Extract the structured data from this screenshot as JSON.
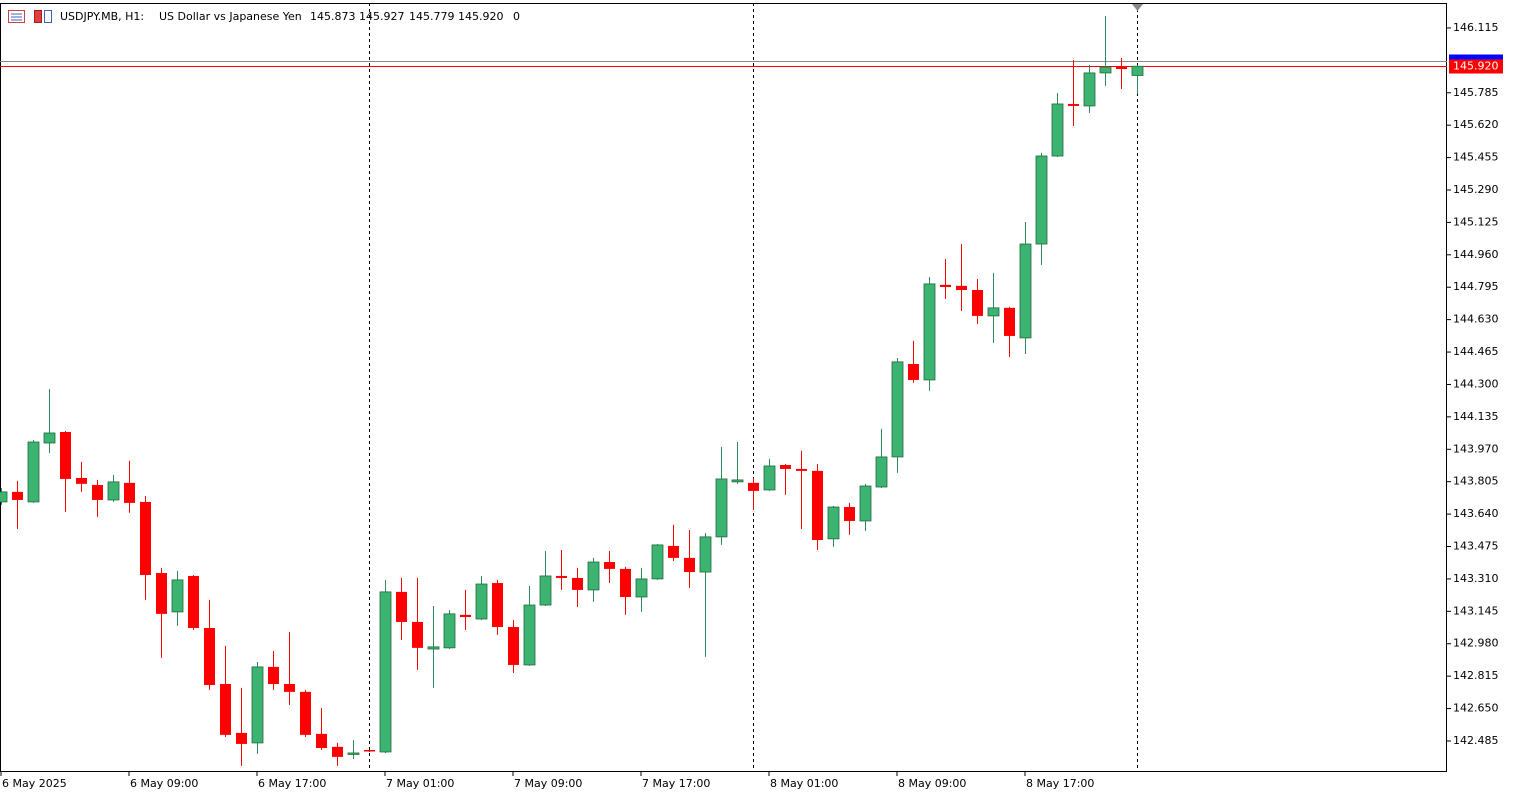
{
  "header": {
    "symbol": "USDJPY.MB, H1:",
    "description": "US Dollar vs Japanese Yen",
    "quote": [
      "145.873",
      "145.927",
      "145.779",
      "145.920"
    ],
    "spread": "0"
  },
  "chart_data": {
    "type": "candlestick",
    "categories": [
      "6 May 2025",
      null,
      null,
      null,
      null,
      null,
      null,
      null,
      "6 May 09:00",
      null,
      null,
      null,
      null,
      null,
      null,
      null,
      "6 May 17:00",
      null,
      null,
      null,
      null,
      null,
      null,
      null,
      "7 May 01:00",
      null,
      null,
      null,
      null,
      null,
      null,
      null,
      "7 May 09:00",
      null,
      null,
      null,
      null,
      null,
      null,
      null,
      "7 May 17:00",
      null,
      null,
      null,
      null,
      null,
      null,
      null,
      "8 May 01:00",
      null,
      null,
      null,
      null,
      null,
      null,
      null,
      "8 May 09:00",
      null,
      null,
      null,
      null,
      null,
      null,
      null,
      "8 May 17:00",
      null,
      null,
      null,
      null,
      null,
      null,
      null
    ],
    "open": [
      143.702,
      143.753,
      143.702,
      144.002,
      144.058,
      143.824,
      143.788,
      143.712,
      143.799,
      143.702,
      143.34,
      143.142,
      143.325,
      143.06,
      142.775,
      142.526,
      142.475,
      142.862,
      142.775,
      142.735,
      142.521,
      142.455,
      142.419,
      142.439,
      142.429,
      143.244,
      143.091,
      142.953,
      142.959,
      143.127,
      143.106,
      143.289,
      143.065,
      142.872,
      143.177,
      143.325,
      143.315,
      143.254,
      143.396,
      143.361,
      143.218,
      143.31,
      143.478,
      143.417,
      143.345,
      143.524,
      143.804,
      143.799,
      143.763,
      143.89,
      143.87,
      143.86,
      143.514,
      143.676,
      143.605,
      143.778,
      143.931,
      144.404,
      144.323,
      144.807,
      144.802,
      144.781,
      144.649,
      144.69,
      144.537,
      145.015,
      145.463,
      145.728,
      145.718,
      145.886,
      145.916,
      145.873
    ],
    "high": [
      143.773,
      143.809,
      144.018,
      144.277,
      144.063,
      143.906,
      143.814,
      143.839,
      143.911,
      143.732,
      143.366,
      143.35,
      143.33,
      143.203,
      142.969,
      142.755,
      142.887,
      142.943,
      143.04,
      142.745,
      142.653,
      142.475,
      142.49,
      142.439,
      143.305,
      143.315,
      143.315,
      143.172,
      143.152,
      143.254,
      143.325,
      143.305,
      143.101,
      143.274,
      143.452,
      143.457,
      143.366,
      143.417,
      143.452,
      143.371,
      143.366,
      143.488,
      143.585,
      143.559,
      143.544,
      143.982,
      144.007,
      143.824,
      143.921,
      143.895,
      143.962,
      143.895,
      143.682,
      143.697,
      143.794,
      144.074,
      144.435,
      144.522,
      144.847,
      144.939,
      145.015,
      144.837,
      144.868,
      144.695,
      145.127,
      145.479,
      145.784,
      145.952,
      145.927,
      146.176,
      145.962,
      145.927
    ],
    "low": [
      143.687,
      143.564,
      143.697,
      143.951,
      143.651,
      143.753,
      143.626,
      143.702,
      143.646,
      143.203,
      142.908,
      143.071,
      143.05,
      142.745,
      142.505,
      142.358,
      142.419,
      142.745,
      142.668,
      142.505,
      142.439,
      142.358,
      142.393,
      142.429,
      142.424,
      142.999,
      142.847,
      142.755,
      142.953,
      143.05,
      143.101,
      143.025,
      142.831,
      142.867,
      143.172,
      143.254,
      143.167,
      143.193,
      143.289,
      143.127,
      143.142,
      143.305,
      143.401,
      143.264,
      142.913,
      143.483,
      143.794,
      143.661,
      143.758,
      143.738,
      143.564,
      143.457,
      143.473,
      143.534,
      143.554,
      143.773,
      143.85,
      144.308,
      144.267,
      144.735,
      144.674,
      144.608,
      144.511,
      144.44,
      144.455,
      144.908,
      145.458,
      145.616,
      145.682,
      145.82,
      145.804,
      145.779
    ],
    "close": [
      143.753,
      143.712,
      144.007,
      144.053,
      143.819,
      143.794,
      143.712,
      143.804,
      143.697,
      143.33,
      143.132,
      143.305,
      143.06,
      142.77,
      142.516,
      142.47,
      142.862,
      142.775,
      142.735,
      142.516,
      142.449,
      142.404,
      142.424,
      142.434,
      143.244,
      143.091,
      142.959,
      142.964,
      143.132,
      143.116,
      143.284,
      143.065,
      142.872,
      143.177,
      143.325,
      143.315,
      143.254,
      143.396,
      143.361,
      143.218,
      143.31,
      143.483,
      143.417,
      143.345,
      143.524,
      143.819,
      143.814,
      143.758,
      143.885,
      143.87,
      143.86,
      143.508,
      143.676,
      143.605,
      143.783,
      143.931,
      144.415,
      144.323,
      144.812,
      144.796,
      144.781,
      144.649,
      144.69,
      144.547,
      145.015,
      145.463,
      145.728,
      145.718,
      145.886,
      145.916,
      145.906,
      145.92
    ],
    "up_color": "#3cb371",
    "down_color": "#ff0000",
    "ylim": [
      142.327,
      146.242
    ],
    "yticks": [
      146.115,
      145.785,
      {
        "value": 145.62,
        "label": "145.620"
      },
      145.455,
      {
        "value": 145.29,
        "label": "145.290"
      },
      145.125,
      {
        "value": 144.96,
        "label": "144.960"
      },
      144.795,
      {
        "value": 144.63,
        "label": "144.630"
      },
      144.465,
      {
        "value": 144.3,
        "label": "144.300"
      },
      144.135,
      {
        "value": 143.97,
        "label": "143.970"
      },
      143.805,
      {
        "value": 143.64,
        "label": "143.640"
      },
      143.475,
      {
        "value": 143.31,
        "label": "143.310"
      },
      143.145,
      {
        "value": 142.98,
        "label": "142.980"
      },
      142.815,
      {
        "value": 142.65,
        "label": "142.650"
      },
      142.485
    ],
    "separators": [
      23,
      47
    ],
    "bid": 145.92,
    "bid_label": "145.920",
    "bid_color": "#ff0000",
    "ask": 145.947,
    "ask_color": "#0000ff",
    "grid": false
  }
}
